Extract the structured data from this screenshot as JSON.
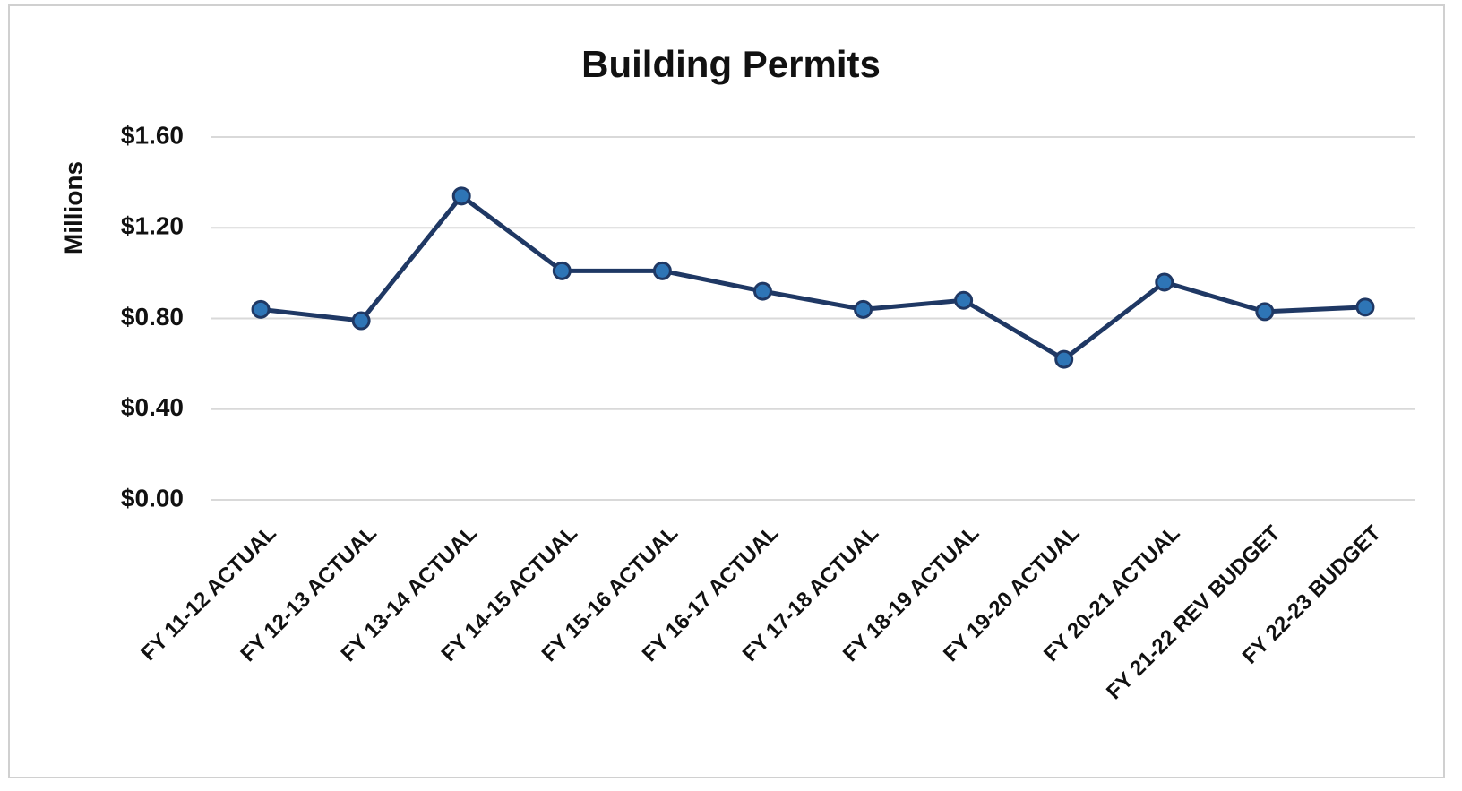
{
  "chart_data": {
    "type": "line",
    "title": "Building Permits",
    "y_label": "Millions",
    "categories": [
      "FY 11-12 ACTUAL",
      "FY 12-13 ACTUAL",
      "FY 13-14 ACTUAL",
      "FY 14-15 ACTUAL",
      "FY 15-16 ACTUAL",
      "FY 16-17 ACTUAL",
      "FY 17-18 ACTUAL",
      "FY 18-19 ACTUAL",
      "FY 19-20 ACTUAL",
      "FY 20-21 ACTUAL",
      "FY 21-22 REV BUDGET",
      "FY 22-23 BUDGET"
    ],
    "series": [
      {
        "name": "Building Permits",
        "color": "#1f3864",
        "marker_color": "#2e75b6",
        "values": [
          0.84,
          0.79,
          1.34,
          1.01,
          1.01,
          0.92,
          0.84,
          0.88,
          0.62,
          0.96,
          0.83,
          0.85
        ]
      }
    ],
    "ylim": [
      0,
      1.6
    ],
    "yticks": [
      {
        "value": 0,
        "label": "$0.00"
      },
      {
        "value": 0.4,
        "label": "$0.40"
      },
      {
        "value": 0.8,
        "label": "$0.80"
      },
      {
        "value": 1.2,
        "label": "$1.20"
      },
      {
        "value": 1.6,
        "label": "$1.60"
      }
    ],
    "grid": true
  }
}
